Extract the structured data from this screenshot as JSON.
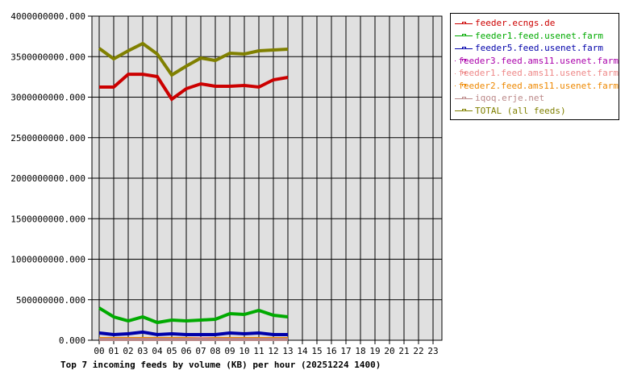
{
  "chart_data": {
    "type": "line",
    "title": "Top 7 incoming feeds by volume (KB) per hour (20251224 1400)",
    "xlabel": "",
    "ylabel": "",
    "ylim": [
      0,
      4000000000
    ],
    "yticks": [
      "0.000",
      "500000000.000",
      "1000000000.000",
      "1500000000.000",
      "2000000000.000",
      "2500000000.000",
      "3000000000.000",
      "3500000000.000",
      "4000000000.000"
    ],
    "categories": [
      "00",
      "01",
      "02",
      "03",
      "04",
      "05",
      "06",
      "07",
      "08",
      "09",
      "10",
      "11",
      "12",
      "13",
      "14",
      "15",
      "16",
      "17",
      "18",
      "19",
      "20",
      "21",
      "22",
      "23"
    ],
    "grid": true,
    "legend_position": "right",
    "series": [
      {
        "name": "feeder.ecngs.de",
        "color": "#cc0000",
        "values": [
          3124000000,
          3124000000,
          3283000000,
          3283000000,
          3254000000,
          2975000000,
          3104000000,
          3164000000,
          3134000000,
          3134000000,
          3144000000,
          3124000000,
          3214000000,
          3244000000
        ]
      },
      {
        "name": "feeder1.feed.usenet.farm",
        "color": "#00aa00",
        "values": [
          398000000,
          289000000,
          239000000,
          289000000,
          219000000,
          249000000,
          239000000,
          249000000,
          259000000,
          328000000,
          318000000,
          368000000,
          308000000,
          289000000
        ]
      },
      {
        "name": "feeder5.feed.usenet.farm",
        "color": "#0000aa",
        "values": [
          90000000,
          70000000,
          80000000,
          100000000,
          70000000,
          80000000,
          70000000,
          70000000,
          70000000,
          90000000,
          80000000,
          90000000,
          70000000,
          70000000
        ]
      },
      {
        "name": "feeder3.feed.ams11.usenet.farm",
        "color": "#aa00aa",
        "values": [
          0,
          0,
          0,
          0,
          0,
          0,
          0,
          0,
          0,
          0,
          0,
          0,
          0,
          0
        ]
      },
      {
        "name": "feeder1.feed.ams11.usenet.farm",
        "color": "#ee8888",
        "values": [
          0,
          0,
          0,
          0,
          0,
          0,
          0,
          0,
          0,
          0,
          0,
          0,
          0,
          0
        ]
      },
      {
        "name": "feeder2.feed.ams11.usenet.farm",
        "color": "#ee8800",
        "values": [
          0,
          0,
          0,
          0,
          0,
          0,
          0,
          10000000,
          0,
          0,
          0,
          0,
          0,
          0
        ]
      },
      {
        "name": "iqoq.erje.net",
        "color": "#bb8888",
        "values": [
          10000000,
          10000000,
          10000000,
          10000000,
          10000000,
          10000000,
          10000000,
          10000000,
          10000000,
          10000000,
          10000000,
          10000000,
          10000000,
          10000000
        ]
      },
      {
        "name": "TOTAL (all feeds)",
        "color": "#808000",
        "values": [
          3602000000,
          3473000000,
          3572000000,
          3662000000,
          3532000000,
          3274000000,
          3383000000,
          3483000000,
          3453000000,
          3542000000,
          3532000000,
          3572000000,
          3582000000,
          3592000000
        ]
      }
    ]
  },
  "colors": {
    "plot_background": "#e0e0e0",
    "grid": "#000000"
  }
}
